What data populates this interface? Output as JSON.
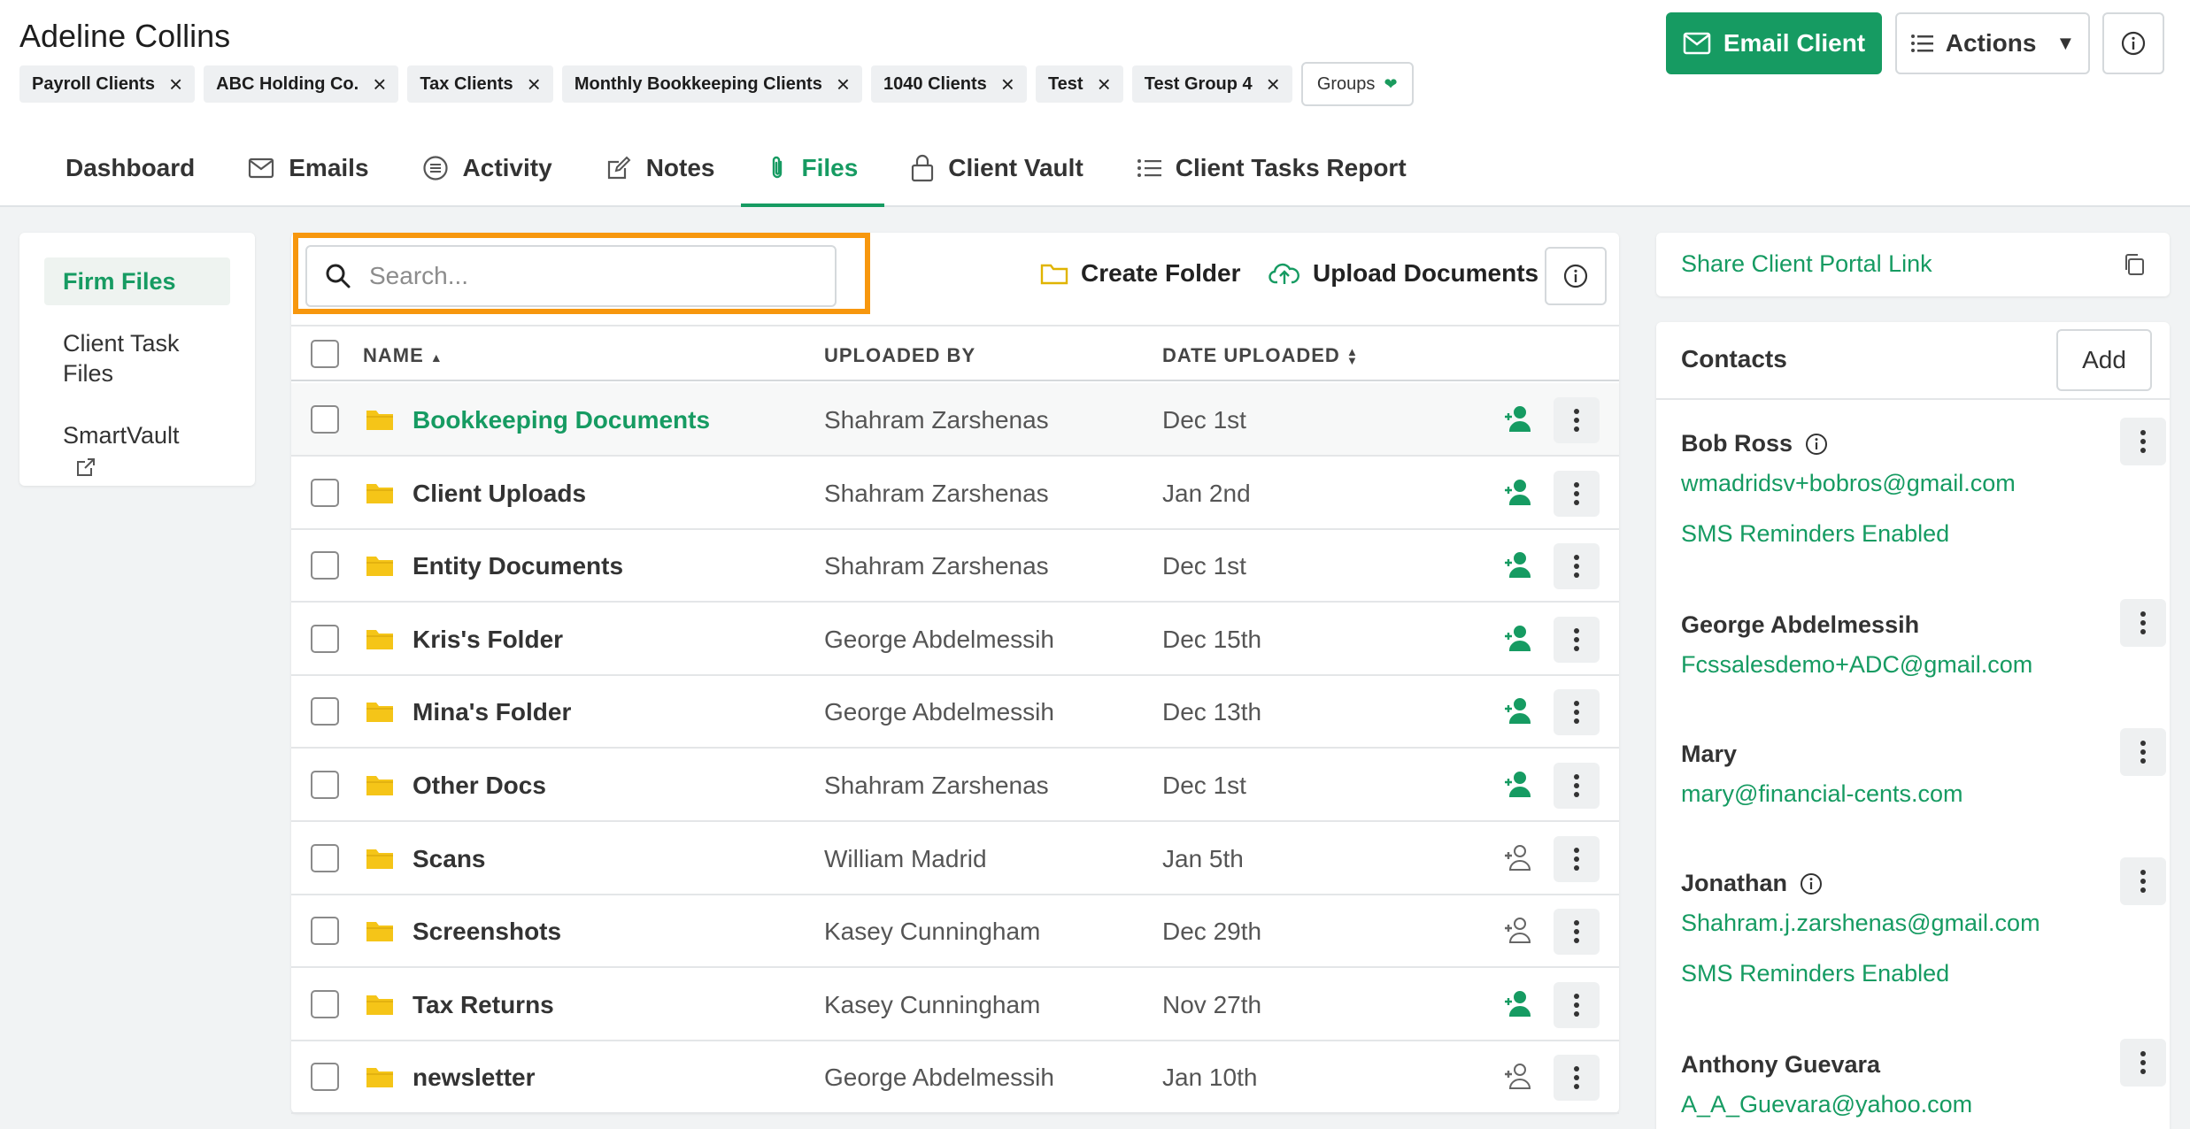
{
  "client": {
    "name": "Adeline Collins"
  },
  "tags": [
    "Payroll Clients",
    "ABC Holding Co.",
    "Tax Clients",
    "Monthly Bookkeeping Clients",
    "1040 Clients",
    "Test",
    "Test Group 4"
  ],
  "groups_label": "Groups",
  "header_actions": {
    "email_client": "Email Client",
    "actions": "Actions"
  },
  "tabs": [
    {
      "label": "Dashboard",
      "icon": ""
    },
    {
      "label": "Emails",
      "icon": "envelope-icon"
    },
    {
      "label": "Activity",
      "icon": "list-circle-icon"
    },
    {
      "label": "Notes",
      "icon": "edit-icon"
    },
    {
      "label": "Files",
      "icon": "paperclip-icon",
      "active": true
    },
    {
      "label": "Client Vault",
      "icon": "lock-icon"
    },
    {
      "label": "Client Tasks Report",
      "icon": "list-icon"
    }
  ],
  "sidebar": {
    "items": [
      {
        "label": "Firm Files",
        "active": true
      },
      {
        "label": "Client Task Files"
      },
      {
        "label": "SmartVault",
        "icon": "external-link-icon"
      }
    ]
  },
  "files": {
    "search_placeholder": "Search...",
    "create_folder": "Create Folder",
    "upload_documents": "Upload Documents",
    "columns": {
      "name": "NAME",
      "uploaded_by": "UPLOADED BY",
      "date_uploaded": "DATE UPLOADED"
    },
    "rows": [
      {
        "name": "Bookkeeping Documents",
        "uploaded_by": "Shahram Zarshenas",
        "date": "Dec 1st",
        "shared": true
      },
      {
        "name": "Client Uploads",
        "uploaded_by": "Shahram Zarshenas",
        "date": "Jan 2nd",
        "shared": true
      },
      {
        "name": "Entity Documents",
        "uploaded_by": "Shahram Zarshenas",
        "date": "Dec 1st",
        "shared": true
      },
      {
        "name": "Kris's Folder",
        "uploaded_by": "George Abdelmessih",
        "date": "Dec 15th",
        "shared": true
      },
      {
        "name": "Mina's Folder",
        "uploaded_by": "George Abdelmessih",
        "date": "Dec 13th",
        "shared": true
      },
      {
        "name": "Other Docs",
        "uploaded_by": "Shahram Zarshenas",
        "date": "Dec 1st",
        "shared": true
      },
      {
        "name": "Scans",
        "uploaded_by": "William Madrid",
        "date": "Jan 5th",
        "shared": false
      },
      {
        "name": "Screenshots",
        "uploaded_by": "Kasey Cunningham",
        "date": "Dec 29th",
        "shared": false
      },
      {
        "name": "Tax Returns",
        "uploaded_by": "Kasey Cunningham",
        "date": "Nov 27th",
        "shared": true
      },
      {
        "name": "newsletter",
        "uploaded_by": "George Abdelmessih",
        "date": "Jan 10th",
        "shared": false
      }
    ]
  },
  "share_portal": {
    "label": "Share Client Portal Link"
  },
  "contacts": {
    "title": "Contacts",
    "add_label": "Add",
    "list": [
      {
        "name": "Bob Ross",
        "email": "wmadridsv+bobros@gmail.com",
        "sms": "SMS Reminders Enabled",
        "info": true
      },
      {
        "name": "George Abdelmessih",
        "email": "Fcssalesdemo+ADC@gmail.com",
        "sms": "",
        "info": false
      },
      {
        "name": "Mary",
        "email": "mary@financial-cents.com",
        "sms": "",
        "info": false
      },
      {
        "name": "Jonathan",
        "email": "Shahram.j.zarshenas@gmail.com",
        "sms": "SMS Reminders Enabled",
        "info": true
      },
      {
        "name": "Anthony Guevara",
        "email": "A_A_Guevara@yahoo.com",
        "sms": "",
        "info": false
      }
    ]
  },
  "colors": {
    "accent": "#169b62",
    "highlight": "#f7970e",
    "folder": "#f5c518"
  }
}
